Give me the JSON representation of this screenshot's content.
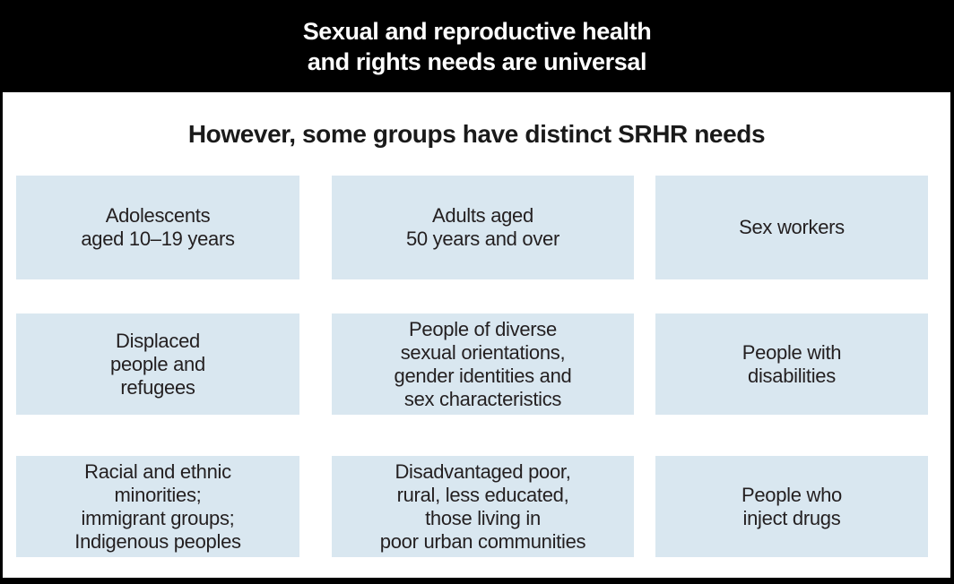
{
  "header": {
    "title": "Sexual and reproductive health\nand rights needs are universal"
  },
  "subtitle": "However, some groups have distinct SRHR needs",
  "colors": {
    "header_bg": "#000000",
    "header_text": "#ffffff",
    "box_bg": "#d9e7f0",
    "body_text": "#231f20",
    "frame": "#000000"
  },
  "groups": [
    {
      "label": "Adolescents\naged 10–19 years"
    },
    {
      "label": "Adults aged\n50 years and over"
    },
    {
      "label": "Sex workers"
    },
    {
      "label": "Displaced\npeople and\nrefugees"
    },
    {
      "label": "People of diverse\nsexual orientations,\ngender identities and\nsex characteristics"
    },
    {
      "label": "People with\ndisabilities"
    },
    {
      "label": "Racial and ethnic\nminorities;\nimmigrant groups;\nIndigenous peoples"
    },
    {
      "label": "Disadvantaged poor,\nrural, less educated,\nthose living in\npoor urban communities"
    },
    {
      "label": "People who\ninject drugs"
    }
  ]
}
